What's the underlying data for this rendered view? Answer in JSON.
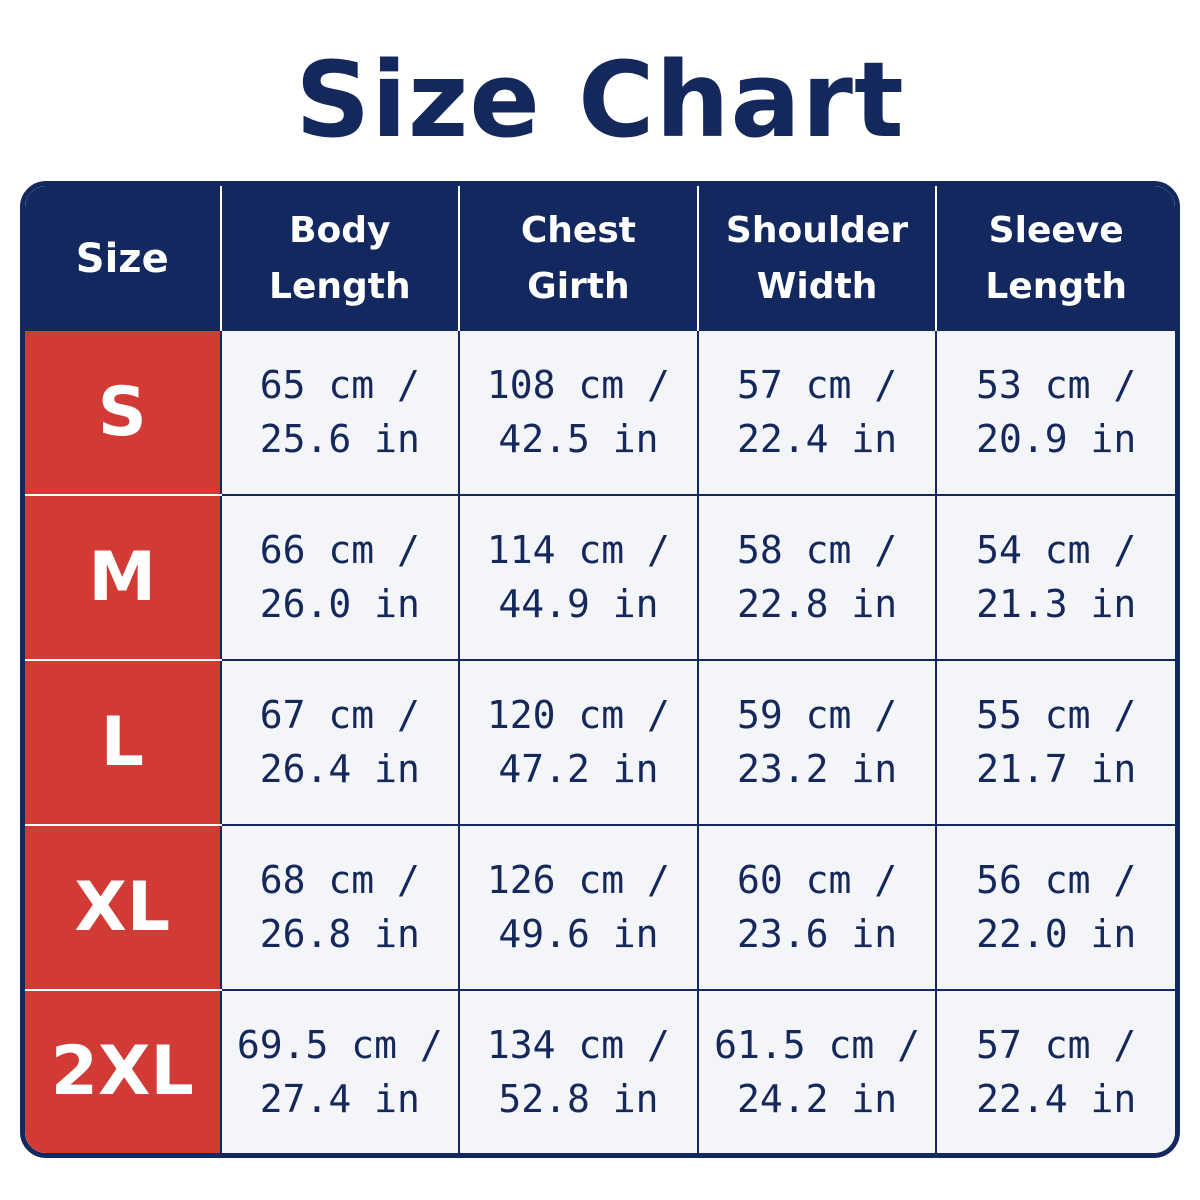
{
  "title": "Size Chart",
  "colors": {
    "navy": "#13285f",
    "red": "#d13a35",
    "cell_bg": "#f4f5f8"
  },
  "headers": [
    {
      "line1": "Size",
      "line2": ""
    },
    {
      "line1": "Body",
      "line2": "Length"
    },
    {
      "line1": "Chest",
      "line2": "Girth"
    },
    {
      "line1": "Shoulder",
      "line2": "Width"
    },
    {
      "line1": "Sleeve",
      "line2": "Length"
    }
  ],
  "rows": [
    {
      "size": "S",
      "cells": [
        {
          "cm": "65 cm /",
          "in": "25.6 in"
        },
        {
          "cm": "108 cm /",
          "in": "42.5 in"
        },
        {
          "cm": "57 cm /",
          "in": "22.4 in"
        },
        {
          "cm": "53 cm /",
          "in": "20.9 in"
        }
      ]
    },
    {
      "size": "M",
      "cells": [
        {
          "cm": "66 cm /",
          "in": "26.0 in"
        },
        {
          "cm": "114 cm /",
          "in": "44.9 in"
        },
        {
          "cm": "58 cm /",
          "in": "22.8 in"
        },
        {
          "cm": "54 cm /",
          "in": "21.3 in"
        }
      ]
    },
    {
      "size": "L",
      "cells": [
        {
          "cm": "67 cm /",
          "in": "26.4 in"
        },
        {
          "cm": "120 cm /",
          "in": "47.2 in"
        },
        {
          "cm": "59 cm /",
          "in": "23.2 in"
        },
        {
          "cm": "55 cm /",
          "in": "21.7 in"
        }
      ]
    },
    {
      "size": "XL",
      "cells": [
        {
          "cm": "68 cm /",
          "in": "26.8 in"
        },
        {
          "cm": "126 cm /",
          "in": "49.6 in"
        },
        {
          "cm": "60 cm /",
          "in": "23.6 in"
        },
        {
          "cm": "56 cm /",
          "in": "22.0 in"
        }
      ]
    },
    {
      "size": "2XL",
      "cells": [
        {
          "cm": "69.5 cm /",
          "in": "27.4 in"
        },
        {
          "cm": "134 cm /",
          "in": "52.8 in"
        },
        {
          "cm": "61.5 cm /",
          "in": "24.2 in"
        },
        {
          "cm": "57 cm /",
          "in": "22.4 in"
        }
      ]
    }
  ]
}
